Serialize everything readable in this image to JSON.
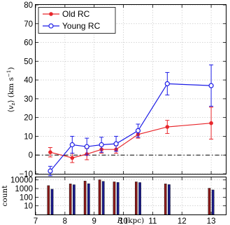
{
  "chart_data": [
    {
      "type": "line",
      "x": [
        7.5,
        8.25,
        8.75,
        9.25,
        9.75,
        10.5,
        11.5,
        13.0
      ],
      "series": [
        {
          "name": "Old RC",
          "color": "#e8262b",
          "marker": "filled-circle",
          "x": [
            7.5,
            8.25,
            8.75,
            9.25,
            9.75,
            10.5,
            11.5,
            13.0
          ],
          "values": [
            1.5,
            -1.5,
            0.5,
            3.0,
            3.0,
            11.0,
            15.0,
            17.0
          ],
          "errors": [
            2.5,
            2.5,
            3.0,
            2.0,
            2.0,
            2.0,
            3.5,
            8.5
          ]
        },
        {
          "name": "Young RC",
          "color": "#1c1ce6",
          "marker": "open-circle",
          "x": [
            7.5,
            8.25,
            8.75,
            9.25,
            9.75,
            10.5,
            11.5,
            13.0
          ],
          "values": [
            -8.5,
            5.5,
            4.5,
            5.5,
            6.0,
            13.0,
            38.0,
            37.0
          ],
          "errors": [
            2.5,
            4.5,
            4.5,
            4.0,
            4.0,
            3.5,
            6.0,
            11.0
          ]
        }
      ],
      "xlim": [
        7.0,
        13.5
      ],
      "ylim": [
        -10,
        80
      ],
      "yticks": [
        -10,
        0,
        10,
        20,
        30,
        40,
        50,
        60,
        70,
        80
      ],
      "ylabel": "⟨v_z⟩ (km s⁻¹)",
      "reference_line": 0,
      "grid": true,
      "legend": "top-left"
    },
    {
      "type": "bar",
      "x": [
        7.5,
        8.25,
        8.75,
        9.25,
        9.75,
        10.5,
        11.5,
        13.0
      ],
      "series": [
        {
          "name": "Old RC",
          "color": "#8b1a1a",
          "values": [
            2200,
            3500,
            7500,
            10500,
            6000,
            6000,
            3500,
            1100
          ]
        },
        {
          "name": "Young RC",
          "color": "#1a1a8c",
          "values": [
            850,
            2800,
            3700,
            6800,
            5200,
            5000,
            2900,
            700
          ]
        }
      ],
      "yscale": "log",
      "ylim": [
        1,
        20000
      ],
      "yticks": [
        "10000",
        "1000",
        "100",
        "10"
      ],
      "ylabel": "count",
      "xticks": [
        "7",
        "8",
        "9",
        "10",
        "11",
        "12",
        "13"
      ],
      "xlabel": "R (kpc)",
      "grid": true
    }
  ]
}
